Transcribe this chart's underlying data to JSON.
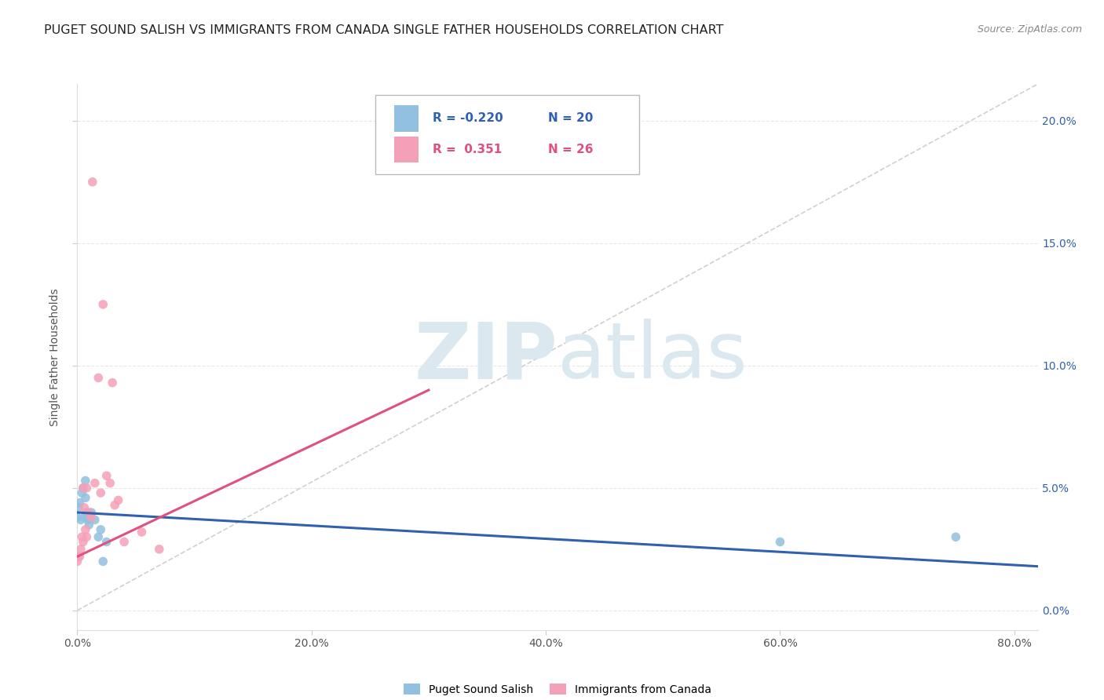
{
  "title": "PUGET SOUND SALISH VS IMMIGRANTS FROM CANADA SINGLE FATHER HOUSEHOLDS CORRELATION CHART",
  "source": "Source: ZipAtlas.com",
  "xmin": 0.0,
  "xmax": 0.82,
  "ymin": -0.008,
  "ymax": 0.215,
  "watermark_zip": "ZIP",
  "watermark_atlas": "atlas",
  "series1_color": "#92c0e0",
  "series2_color": "#f4a0b8",
  "trendline1_color": "#3060b0",
  "trendline2_color": "#e05080",
  "diag_color": "#d0d0d0",
  "grid_color": "#e8e8e8",
  "blue_points": [
    [
      0.0,
      0.038
    ],
    [
      0.001,
      0.042
    ],
    [
      0.002,
      0.044
    ],
    [
      0.003,
      0.037
    ],
    [
      0.004,
      0.048
    ],
    [
      0.005,
      0.05
    ],
    [
      0.006,
      0.038
    ],
    [
      0.007,
      0.046
    ],
    [
      0.007,
      0.053
    ],
    [
      0.008,
      0.04
    ],
    [
      0.009,
      0.037
    ],
    [
      0.01,
      0.035
    ],
    [
      0.012,
      0.04
    ],
    [
      0.015,
      0.037
    ],
    [
      0.018,
      0.03
    ],
    [
      0.02,
      0.033
    ],
    [
      0.022,
      0.02
    ],
    [
      0.025,
      0.028
    ],
    [
      0.6,
      0.028
    ],
    [
      0.75,
      0.03
    ]
  ],
  "pink_points": [
    [
      0.0,
      0.02
    ],
    [
      0.001,
      0.022
    ],
    [
      0.002,
      0.022
    ],
    [
      0.003,
      0.025
    ],
    [
      0.004,
      0.03
    ],
    [
      0.005,
      0.028
    ],
    [
      0.006,
      0.042
    ],
    [
      0.007,
      0.033
    ],
    [
      0.008,
      0.05
    ],
    [
      0.01,
      0.04
    ],
    [
      0.012,
      0.038
    ],
    [
      0.013,
      0.175
    ],
    [
      0.015,
      0.052
    ],
    [
      0.018,
      0.095
    ],
    [
      0.02,
      0.048
    ],
    [
      0.022,
      0.125
    ],
    [
      0.025,
      0.055
    ],
    [
      0.028,
      0.052
    ],
    [
      0.03,
      0.093
    ],
    [
      0.032,
      0.043
    ],
    [
      0.035,
      0.045
    ],
    [
      0.04,
      0.028
    ],
    [
      0.055,
      0.032
    ],
    [
      0.07,
      0.025
    ],
    [
      0.005,
      0.05
    ],
    [
      0.008,
      0.03
    ]
  ],
  "trendline1_x": [
    0.0,
    0.82
  ],
  "trendline1_y": [
    0.04,
    0.018
  ],
  "trendline2_x": [
    0.0,
    0.3
  ],
  "trendline2_y": [
    0.022,
    0.09
  ],
  "diag_line_x": [
    0.0,
    0.82
  ],
  "diag_line_y": [
    0.0,
    0.215
  ],
  "ytick_vals": [
    0.0,
    0.05,
    0.1,
    0.15,
    0.2
  ],
  "ytick_labels": [
    "0.0%",
    "5.0%",
    "10.0%",
    "15.0%",
    "20.0%"
  ],
  "xtick_vals": [
    0.0,
    0.2,
    0.4,
    0.6,
    0.8
  ],
  "xtick_labels": [
    "0.0%",
    "20.0%",
    "40.0%",
    "60.0%",
    "80.0%"
  ],
  "legend_r1": "R = -0.220",
  "legend_n1": "N = 20",
  "legend_r2": "R =  0.351",
  "legend_n2": "N = 26",
  "ylabel": "Single Father Households",
  "legend1_label": "Puget Sound Salish",
  "legend2_label": "Immigrants from Canada",
  "title_fontsize": 11.5,
  "source_fontsize": 9,
  "tick_fontsize": 10,
  "label_fontsize": 10,
  "legend_fontsize": 11
}
